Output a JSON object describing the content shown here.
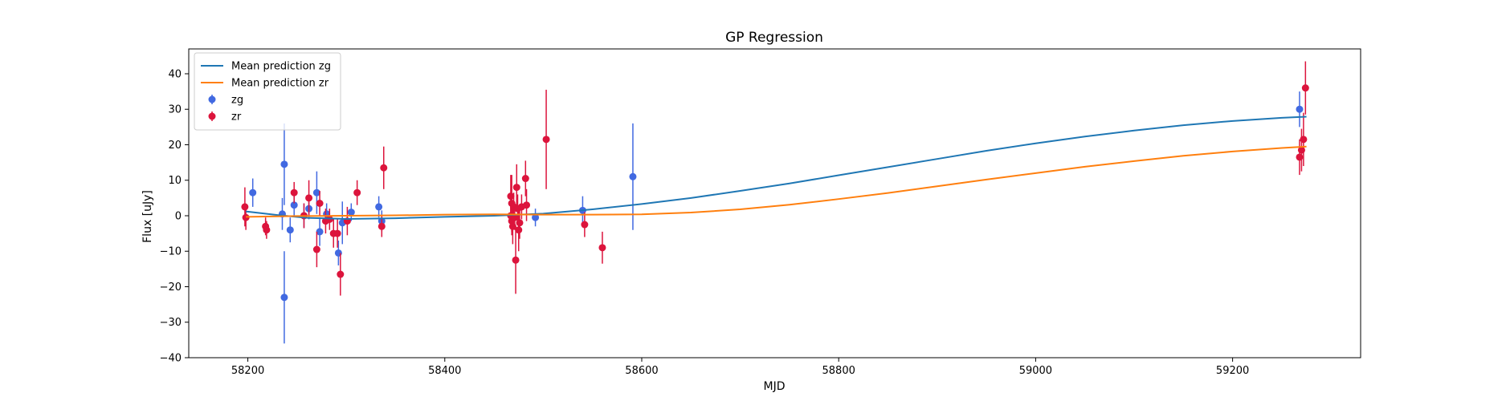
{
  "chart_data": {
    "type": "scatter",
    "title": "GP Regression",
    "xlabel": "MJD",
    "ylabel": "Flux [uJy]",
    "xlim": [
      58140,
      59330
    ],
    "ylim": [
      -40,
      47
    ],
    "xticks": [
      58200,
      58400,
      58600,
      58800,
      59000,
      59200
    ],
    "yticks": [
      -40,
      -30,
      -20,
      -10,
      0,
      10,
      20,
      30,
      40
    ],
    "xtick_labels": [
      "58200",
      "58400",
      "58600",
      "58800",
      "59000",
      "59200"
    ],
    "ytick_labels": [
      "−40",
      "−30",
      "−20",
      "−10",
      "0",
      "10",
      "20",
      "30",
      "40"
    ],
    "grid": false,
    "legend_position": "top-left",
    "legend": [
      {
        "label": "Mean prediction zg",
        "kind": "line",
        "color": "#1f77b4"
      },
      {
        "label": "Mean prediction zr",
        "kind": "line",
        "color": "#ff7f0e"
      },
      {
        "label": "zg",
        "kind": "errorbar",
        "color": "#4169e1"
      },
      {
        "label": "zr",
        "kind": "errorbar",
        "color": "#dc143c"
      }
    ],
    "lines": [
      {
        "name": "Mean prediction zg",
        "color": "#1f77b4",
        "points": [
          [
            58198,
            1.2
          ],
          [
            58230,
            0.2
          ],
          [
            58260,
            -0.6
          ],
          [
            58300,
            -0.9
          ],
          [
            58350,
            -0.7
          ],
          [
            58400,
            -0.3
          ],
          [
            58450,
            0.0
          ],
          [
            58500,
            0.6
          ],
          [
            58550,
            1.8
          ],
          [
            58600,
            3.3
          ],
          [
            58650,
            5.0
          ],
          [
            58700,
            7.0
          ],
          [
            58750,
            9.1
          ],
          [
            58800,
            11.4
          ],
          [
            58850,
            13.7
          ],
          [
            58900,
            16.0
          ],
          [
            58950,
            18.3
          ],
          [
            59000,
            20.4
          ],
          [
            59050,
            22.3
          ],
          [
            59100,
            24.0
          ],
          [
            59150,
            25.5
          ],
          [
            59200,
            26.7
          ],
          [
            59250,
            27.6
          ],
          [
            59275,
            27.9
          ]
        ]
      },
      {
        "name": "Mean prediction zr",
        "color": "#ff7f0e",
        "points": [
          [
            58198,
            -0.3
          ],
          [
            58250,
            -0.1
          ],
          [
            58300,
            0.0
          ],
          [
            58350,
            0.1
          ],
          [
            58400,
            0.3
          ],
          [
            58450,
            0.4
          ],
          [
            58500,
            0.3
          ],
          [
            58550,
            0.3
          ],
          [
            58600,
            0.4
          ],
          [
            58650,
            0.9
          ],
          [
            58700,
            1.8
          ],
          [
            58750,
            3.1
          ],
          [
            58800,
            4.7
          ],
          [
            58850,
            6.4
          ],
          [
            58900,
            8.3
          ],
          [
            58950,
            10.2
          ],
          [
            59000,
            12.0
          ],
          [
            59050,
            13.8
          ],
          [
            59100,
            15.4
          ],
          [
            59150,
            16.9
          ],
          [
            59200,
            18.1
          ],
          [
            59250,
            19.1
          ],
          [
            59275,
            19.5
          ]
        ]
      }
    ],
    "series": [
      {
        "name": "zg",
        "color": "#4169e1",
        "points": [
          {
            "x": 58205,
            "y": 6.5,
            "err": 4.0
          },
          {
            "x": 58235,
            "y": 0.5,
            "err": 4.5
          },
          {
            "x": 58237,
            "y": 14.5,
            "err": 11.5
          },
          {
            "x": 58237,
            "y": -23.0,
            "err": 13.0
          },
          {
            "x": 58243,
            "y": -4.0,
            "err": 3.5
          },
          {
            "x": 58247,
            "y": 3.0,
            "err": 3.0
          },
          {
            "x": 58257,
            "y": 0.0,
            "err": 3.5
          },
          {
            "x": 58262,
            "y": 2.0,
            "err": 3.0
          },
          {
            "x": 58270,
            "y": 6.5,
            "err": 6.0
          },
          {
            "x": 58273,
            "y": -4.5,
            "err": 4.0
          },
          {
            "x": 58280,
            "y": 0.5,
            "err": 3.0
          },
          {
            "x": 58292,
            "y": -10.5,
            "err": 3.5
          },
          {
            "x": 58296,
            "y": -2.0,
            "err": 6.0
          },
          {
            "x": 58305,
            "y": 1.0,
            "err": 2.5
          },
          {
            "x": 58333,
            "y": 2.5,
            "err": 3.0
          },
          {
            "x": 58336,
            "y": -1.5,
            "err": 3.0
          },
          {
            "x": 58492,
            "y": -0.5,
            "err": 2.5
          },
          {
            "x": 58540,
            "y": 1.5,
            "err": 4.0
          },
          {
            "x": 58591,
            "y": 11.0,
            "err": 15.0
          },
          {
            "x": 59268,
            "y": 30.0,
            "err": 5.0
          }
        ]
      },
      {
        "name": "zr",
        "color": "#dc143c",
        "points": [
          {
            "x": 58197,
            "y": 2.5,
            "err": 5.5
          },
          {
            "x": 58198,
            "y": -0.5,
            "err": 3.5
          },
          {
            "x": 58218,
            "y": -3.0,
            "err": 2.5
          },
          {
            "x": 58219,
            "y": -4.0,
            "err": 2.5
          },
          {
            "x": 58247,
            "y": 6.5,
            "err": 3.0
          },
          {
            "x": 58257,
            "y": 0.0,
            "err": 3.5
          },
          {
            "x": 58262,
            "y": 5.0,
            "err": 5.0
          },
          {
            "x": 58270,
            "y": -9.5,
            "err": 5.0
          },
          {
            "x": 58273,
            "y": 3.5,
            "err": 3.5
          },
          {
            "x": 58279,
            "y": -1.5,
            "err": 3.5
          },
          {
            "x": 58283,
            "y": -1.0,
            "err": 3.0
          },
          {
            "x": 58287,
            "y": -5.0,
            "err": 4.0
          },
          {
            "x": 58291,
            "y": -5.0,
            "err": 4.0
          },
          {
            "x": 58294,
            "y": -16.5,
            "err": 6.0
          },
          {
            "x": 58301,
            "y": -1.5,
            "err": 4.0
          },
          {
            "x": 58311,
            "y": 6.5,
            "err": 3.5
          },
          {
            "x": 58336,
            "y": -3.0,
            "err": 3.0
          },
          {
            "x": 58338,
            "y": 13.5,
            "err": 6.0
          },
          {
            "x": 58467,
            "y": 0.0,
            "err": 3.0
          },
          {
            "x": 58467,
            "y": 5.5,
            "err": 6.0
          },
          {
            "x": 58468,
            "y": -1.5,
            "err": 4.0
          },
          {
            "x": 58468,
            "y": 3.5,
            "err": 8.0
          },
          {
            "x": 58469,
            "y": -3.0,
            "err": 5.0
          },
          {
            "x": 58470,
            "y": 2.5,
            "err": 4.0
          },
          {
            "x": 58471,
            "y": -0.5,
            "err": 3.5
          },
          {
            "x": 58472,
            "y": -12.5,
            "err": 9.5
          },
          {
            "x": 58473,
            "y": 8.0,
            "err": 6.5
          },
          {
            "x": 58474,
            "y": 2.0,
            "err": 4.0
          },
          {
            "x": 58475,
            "y": -4.0,
            "err": 6.0
          },
          {
            "x": 58476,
            "y": -2.0,
            "err": 4.5
          },
          {
            "x": 58478,
            "y": 2.5,
            "err": 3.5
          },
          {
            "x": 58482,
            "y": 10.5,
            "err": 5.0
          },
          {
            "x": 58483,
            "y": 3.0,
            "err": 4.5
          },
          {
            "x": 58503,
            "y": 21.5,
            "err": 14.0
          },
          {
            "x": 58542,
            "y": -2.5,
            "err": 3.5
          },
          {
            "x": 58560,
            "y": -9.0,
            "err": 4.5
          },
          {
            "x": 59268,
            "y": 16.5,
            "err": 5.0
          },
          {
            "x": 59270,
            "y": 18.5,
            "err": 6.0
          },
          {
            "x": 59272,
            "y": 21.5,
            "err": 7.5
          },
          {
            "x": 59274,
            "y": 36.0,
            "err": 7.5
          }
        ]
      }
    ]
  }
}
